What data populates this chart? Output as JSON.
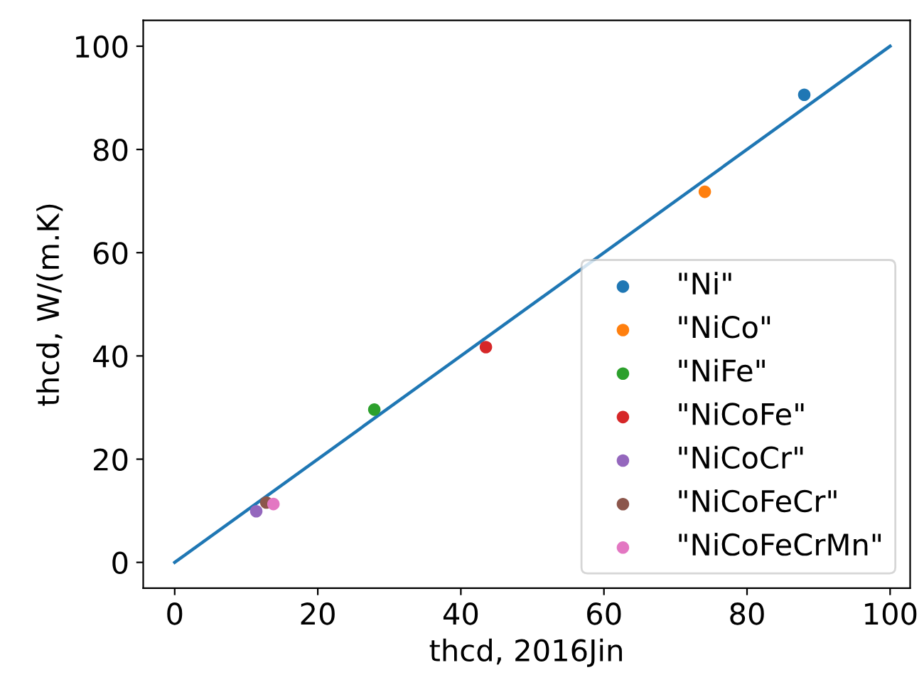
{
  "chart_data": {
    "type": "scatter",
    "xlabel": "thcd, 2016Jin",
    "ylabel": "thcd, W/(m.K)",
    "series": [
      {
        "name": "\"Ni\"",
        "color": "#1f77b4",
        "x": [
          88.0
        ],
        "values": [
          90.6
        ]
      },
      {
        "name": "\"NiCo\"",
        "color": "#ff7f0e",
        "x": [
          74.1
        ],
        "values": [
          71.8
        ]
      },
      {
        "name": "\"NiFe\"",
        "color": "#2ca02c",
        "x": [
          27.9
        ],
        "values": [
          29.6
        ]
      },
      {
        "name": "\"NiCoFe\"",
        "color": "#d62728",
        "x": [
          43.5
        ],
        "values": [
          41.7
        ]
      },
      {
        "name": "\"NiCoCr\"",
        "color": "#9467bd",
        "x": [
          11.4
        ],
        "values": [
          9.9
        ]
      },
      {
        "name": "\"NiCoFeCr\"",
        "color": "#8c564b",
        "x": [
          12.8
        ],
        "values": [
          11.6
        ]
      },
      {
        "name": "\"NiCoFeCrMn\"",
        "color": "#e377c2",
        "x": [
          13.8
        ],
        "values": [
          11.3
        ]
      },
      {
        "type": "line",
        "marker": "none",
        "color": "#1f77b4",
        "x": [
          0,
          100
        ],
        "values": [
          0,
          100
        ]
      }
    ],
    "xlim": [
      -4.4,
      102.8
    ],
    "ylim": [
      -5,
      105
    ],
    "xticks": [
      0,
      20,
      40,
      60,
      80,
      100
    ],
    "yticks": [
      0,
      20,
      40,
      60,
      80,
      100
    ],
    "grid": false,
    "legend": "bottom right",
    "marker": "circle"
  }
}
